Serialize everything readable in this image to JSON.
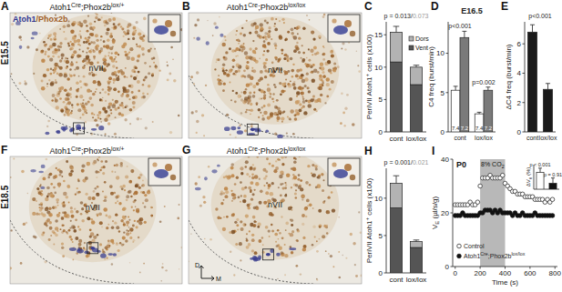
{
  "image_panels": [
    {
      "label": "A",
      "title": [
        "Atoh1",
        {
          "sup": "Cre"
        },
        ";Phox2b",
        {
          "sup": "lox/+"
        }
      ],
      "stage": "E15.5",
      "stain": [
        {
          "text": "Atoh1",
          "color": "#2f3590"
        },
        {
          "text": "/Phox2b",
          "color": "#a0602a"
        }
      ],
      "region": "nVII"
    },
    {
      "label": "B",
      "title": [
        "Atoh1",
        {
          "sup": "Cre"
        },
        ";Phox2b",
        {
          "sup": "lox/lox"
        }
      ],
      "region": "nVII"
    },
    {
      "label": "F",
      "title": [
        "Atoh1",
        {
          "sup": "Cre"
        },
        ";Phox2b",
        {
          "sup": "lox/+"
        }
      ],
      "stage": "E18.5",
      "region": "nVII"
    },
    {
      "label": "G",
      "title": [
        "Atoh1",
        {
          "sup": "Cre"
        },
        ";Phox2b",
        {
          "sup": "lox/lox"
        }
      ],
      "region": "nVII",
      "compass": [
        "D",
        "M"
      ]
    }
  ],
  "chart_data": [
    {
      "label": "C",
      "type": "bar",
      "stacked": true,
      "legend": "upper right",
      "categories": [
        "cont",
        "lox/lox"
      ],
      "y_label": [
        "PeriVII Atoh1",
        {
          "sup": "+"
        },
        " cells (x100)"
      ],
      "ylim": [
        0,
        17
      ],
      "yticks": [
        0,
        5,
        10,
        15
      ],
      "series": [
        {
          "name": "Vent",
          "color": "#555555",
          "values": [
            10.8,
            7.3
          ],
          "errors": [
            0.6,
            0.7
          ]
        },
        {
          "name": "Dors",
          "color": "#b3b3b3",
          "values": [
            4.6,
            2.7
          ],
          "errors": [
            0.9,
            0.3
          ]
        }
      ],
      "annotations": [
        [
          {
            "text": "p = 0.013/",
            "color": "#222222"
          },
          {
            "text": "0.073",
            "color": "#999999"
          }
        ]
      ]
    },
    {
      "label": "D",
      "type": "bar",
      "title": "E16.5",
      "categories": [
        "cont",
        "lox/lox"
      ],
      "y_label": "C4 freq (burst/min)",
      "ylim": [
        0,
        14
      ],
      "yticks": [
        0,
        5,
        10
      ],
      "series": [
        {
          "name": "7.4",
          "color": "#ffffff",
          "values": [
            5.3,
            2.3
          ],
          "errors": [
            0.5,
            0.2
          ]
        },
        {
          "name": "7.2",
          "color": "#7a7a7a",
          "values": [
            12.0,
            5.3
          ],
          "errors": [
            0.8,
            0.4
          ]
        }
      ],
      "annotations": [
        "p<0.001",
        "p=0.002"
      ]
    },
    {
      "label": "E",
      "type": "bar",
      "categories": [
        "cont",
        "lox/lox"
      ],
      "y_label": "ΔC4 freq (burst/min)",
      "ylim": [
        0,
        7.5
      ],
      "yticks": [
        0,
        2,
        4,
        6
      ],
      "values": [
        6.8,
        2.9
      ],
      "errors": [
        0.5,
        0.4
      ],
      "color": "#1a1a1a",
      "annotations": [
        "p<0.001"
      ]
    },
    {
      "label": "H",
      "type": "bar",
      "stacked": true,
      "categories": [
        "cont",
        "lox/lox"
      ],
      "y_label": [
        "PeriVII Atoh1",
        {
          "sup": "+"
        },
        " cells (x100)"
      ],
      "ylim": [
        0,
        14
      ],
      "yticks": [
        0,
        5,
        10
      ],
      "series": [
        {
          "name": "Vent",
          "color": "#555555",
          "values": [
            8.7,
            3.4
          ],
          "errors": [
            0.6,
            0.3
          ]
        },
        {
          "name": "Dors",
          "color": "#b3b3b3",
          "values": [
            3.3,
            0.8
          ],
          "errors": [
            1.0,
            0.2
          ]
        }
      ],
      "annotations": [
        [
          {
            "text": "p = 0.001/",
            "color": "#222222"
          },
          {
            "text": "0.021",
            "color": "#999999"
          }
        ]
      ]
    },
    {
      "label": "I",
      "type": "scatter",
      "title": "P0",
      "legend": "lower left",
      "x_label": "Time (s)",
      "y_label": [
        "V",
        {
          "sub": "E"
        },
        " (µl/s/g)"
      ],
      "x": [
        0,
        20,
        40,
        60,
        80,
        100,
        120,
        140,
        160,
        180,
        200,
        220,
        240,
        260,
        280,
        300,
        320,
        340,
        360,
        380,
        400,
        420,
        440,
        460,
        480,
        500,
        520,
        540,
        560,
        580,
        600,
        620,
        640,
        660,
        680,
        700,
        720,
        740,
        760,
        780
      ],
      "xlim": [
        -20,
        820
      ],
      "xticks": [
        0,
        200,
        400,
        600,
        800
      ],
      "ylim": [
        0,
        40
      ],
      "yticks": [
        0,
        20,
        40
      ],
      "highlight": {
        "range": [
          200,
          400
        ],
        "label": [
          "8% CO",
          {
            "sub": "2"
          }
        ]
      },
      "series": [
        {
          "name": "Control",
          "marker": "open",
          "color": "#333333",
          "values": [
            23,
            23,
            23,
            23,
            23,
            23,
            24,
            23,
            23,
            24,
            30,
            33,
            33,
            33,
            34,
            33,
            33,
            33,
            33,
            34,
            31,
            30,
            29,
            28,
            28,
            27,
            27,
            27,
            26,
            26,
            26,
            26,
            25,
            25,
            25,
            25,
            24,
            25,
            24,
            25
          ]
        },
        {
          "name": [
            "Atoh1",
            {
              "sup": "Cre"
            },
            ";Phox2b",
            {
              "sup": "lox/lox"
            }
          ],
          "marker": "filled",
          "color": "#111111",
          "values": [
            19,
            19,
            19,
            20,
            19,
            19,
            19,
            19,
            19,
            19,
            20,
            20,
            21,
            21,
            21,
            20,
            21,
            20,
            21,
            20,
            20,
            20,
            20,
            19,
            20,
            19,
            19,
            20,
            19,
            19,
            19,
            19,
            20,
            19,
            19,
            19,
            19,
            19,
            19,
            19
          ]
        }
      ],
      "inset": {
        "type": "bar",
        "categories": [
          null,
          null
        ],
        "y_label": [
          "ΔV",
          {
            "sub": "e"
          },
          " (%)"
        ],
        "ylim": [
          0,
          70
        ],
        "tick_labels": false,
        "values": [
          48,
          17
        ],
        "errors": [
          12,
          15
        ],
        "colors": [
          "#ffffff",
          "#111111"
        ],
        "annotations": [
          "p < 0.001",
          "p = 0.91"
        ]
      }
    }
  ]
}
